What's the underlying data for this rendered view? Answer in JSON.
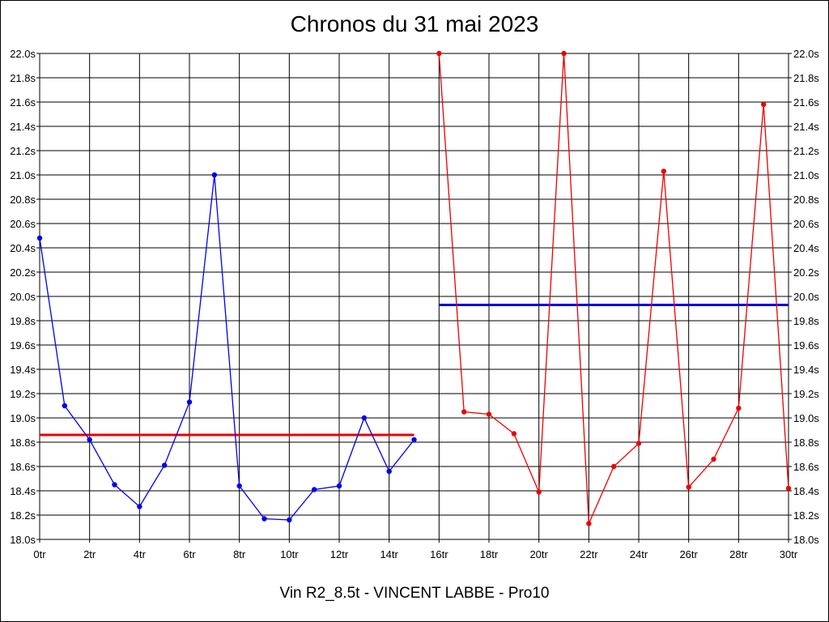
{
  "chart_data": {
    "type": "line",
    "title": "Chronos du 31 mai 2023",
    "footer": "Vin R2_8.5t - VINCENT LABBE - Pro10",
    "xlabel": "",
    "ylabel": "",
    "xlim": [
      0,
      30
    ],
    "ylim": [
      18.0,
      22.0
    ],
    "x_ticks": [
      0,
      2,
      4,
      6,
      8,
      10,
      12,
      14,
      16,
      18,
      20,
      22,
      24,
      26,
      28,
      30
    ],
    "x_tick_labels": [
      "0tr",
      "2tr",
      "4tr",
      "6tr",
      "8tr",
      "10tr",
      "12tr",
      "14tr",
      "16tr",
      "18tr",
      "20tr",
      "22tr",
      "24tr",
      "26tr",
      "28tr",
      "30tr"
    ],
    "y_ticks": [
      18.0,
      18.2,
      18.4,
      18.6,
      18.8,
      19.0,
      19.2,
      19.4,
      19.6,
      19.8,
      20.0,
      20.2,
      20.4,
      20.6,
      20.8,
      21.0,
      21.2,
      21.4,
      21.6,
      21.8,
      22.0
    ],
    "y_tick_labels": [
      "18.0s",
      "18.2s",
      "18.4s",
      "18.6s",
      "18.8s",
      "19.0s",
      "19.2s",
      "19.4s",
      "19.6s",
      "19.8s",
      "20.0s",
      "20.2s",
      "20.4s",
      "20.6s",
      "20.8s",
      "21.0s",
      "21.2s",
      "21.4s",
      "21.6s",
      "21.8s",
      "22.0s"
    ],
    "grid": true,
    "series": [
      {
        "color": "#0000ee",
        "x": [
          0,
          1,
          2,
          3,
          4,
          5,
          6,
          7,
          8,
          9,
          10,
          11,
          12,
          13,
          14,
          15
        ],
        "y": [
          20.48,
          19.1,
          18.82,
          18.45,
          18.27,
          18.61,
          19.13,
          21.0,
          18.44,
          18.17,
          18.16,
          18.41,
          18.44,
          19.0,
          18.56,
          18.82
        ]
      },
      {
        "color": "#ee0000",
        "x": [
          16,
          17,
          18,
          19,
          20,
          21,
          22,
          23,
          24,
          25,
          26,
          27,
          28,
          29,
          30
        ],
        "y": [
          22.0,
          19.05,
          19.03,
          18.87,
          18.39,
          22.0,
          18.13,
          18.6,
          18.79,
          21.03,
          18.43,
          18.66,
          19.08,
          21.58,
          18.42
        ]
      }
    ],
    "reference_lines": [
      {
        "color": "#ee0000",
        "y": 18.86,
        "x_start": 0,
        "x_end": 15
      },
      {
        "color": "#0000dd",
        "y": 19.93,
        "x_start": 16,
        "x_end": 30
      }
    ]
  }
}
